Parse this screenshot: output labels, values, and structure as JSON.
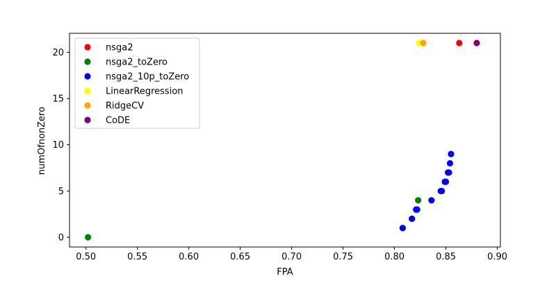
{
  "chart_data": {
    "type": "scatter",
    "title": "",
    "xlabel": "FPA",
    "ylabel": "numOfnonZero",
    "xlim": [
      0.484,
      0.903
    ],
    "ylim": [
      -1.05,
      22.05
    ],
    "xticks": [
      0.5,
      0.55,
      0.6,
      0.65,
      0.7,
      0.75,
      0.8,
      0.85,
      0.9
    ],
    "xtick_labels": [
      "0.50",
      "0.55",
      "0.60",
      "0.65",
      "0.70",
      "0.75",
      "0.80",
      "0.85",
      "0.90"
    ],
    "yticks": [
      0,
      5,
      10,
      15,
      20
    ],
    "ytick_labels": [
      "0",
      "5",
      "10",
      "15",
      "20"
    ],
    "grid": false,
    "legend_position": "top-left",
    "series": [
      {
        "name": "nsga2",
        "color": "#ff0000",
        "points": [
          [
            0.863,
            21
          ]
        ]
      },
      {
        "name": "nsga2_toZero",
        "color": "#008000",
        "points": [
          [
            0.502,
            0
          ],
          [
            0.808,
            1
          ],
          [
            0.817,
            2
          ],
          [
            0.822,
            3
          ],
          [
            0.823,
            4
          ]
        ]
      },
      {
        "name": "nsga2_10p_toZero",
        "color": "#0000ff",
        "points": [
          [
            0.808,
            1
          ],
          [
            0.817,
            2
          ],
          [
            0.821,
            3
          ],
          [
            0.822,
            3
          ],
          [
            0.836,
            4
          ],
          [
            0.845,
            5
          ],
          [
            0.846,
            5
          ],
          [
            0.849,
            6
          ],
          [
            0.85,
            6
          ],
          [
            0.852,
            7
          ],
          [
            0.853,
            7
          ],
          [
            0.854,
            8
          ],
          [
            0.855,
            9
          ]
        ]
      },
      {
        "name": "LinearRegression",
        "color": "#ffff00",
        "points": [
          [
            0.824,
            21
          ]
        ]
      },
      {
        "name": "RidgeCV",
        "color": "#ffa500",
        "points": [
          [
            0.828,
            21
          ]
        ]
      },
      {
        "name": "CoDE",
        "color": "#800080",
        "points": [
          [
            0.88,
            21
          ]
        ]
      }
    ]
  }
}
